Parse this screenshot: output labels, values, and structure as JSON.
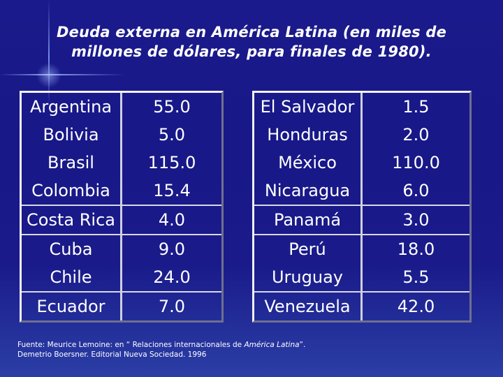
{
  "title": {
    "line1": "Deuda externa en  América Latina (en miles de",
    "line2": "millones de dólares, para finales de 1980)."
  },
  "table_left": [
    {
      "country": "Argentina",
      "value": "55.0"
    },
    {
      "country": "Bolivia",
      "value": "5.0"
    },
    {
      "country": "Brasil",
      "value": "115.0"
    },
    {
      "country": "Colombia",
      "value": "15.4"
    },
    {
      "country": "Costa Rica",
      "value": "4.0"
    },
    {
      "country": "Cuba",
      "value": "9.0"
    },
    {
      "country": "Chile",
      "value": "24.0"
    },
    {
      "country": "Ecuador",
      "value": "7.0"
    }
  ],
  "table_right": [
    {
      "country": "El Salvador",
      "value": "1.5"
    },
    {
      "country": "Honduras",
      "value": "2.0"
    },
    {
      "country": "México",
      "value": "110.0"
    },
    {
      "country": "Nicaragua",
      "value": "6.0"
    },
    {
      "country": "Panamá",
      "value": "3.0"
    },
    {
      "country": "Perú",
      "value": "18.0"
    },
    {
      "country": "Uruguay",
      "value": "5.5"
    },
    {
      "country": "Venezuela",
      "value": "42.0"
    }
  ],
  "source": {
    "prefix": "Fuente: Meurice Lemoine: en “ Relaciones internacionales de ",
    "book": "América Latina",
    "suffix": "”.",
    "line2": "Demetrio Boersner. Editorial Nueva Sociedad. 1996"
  }
}
